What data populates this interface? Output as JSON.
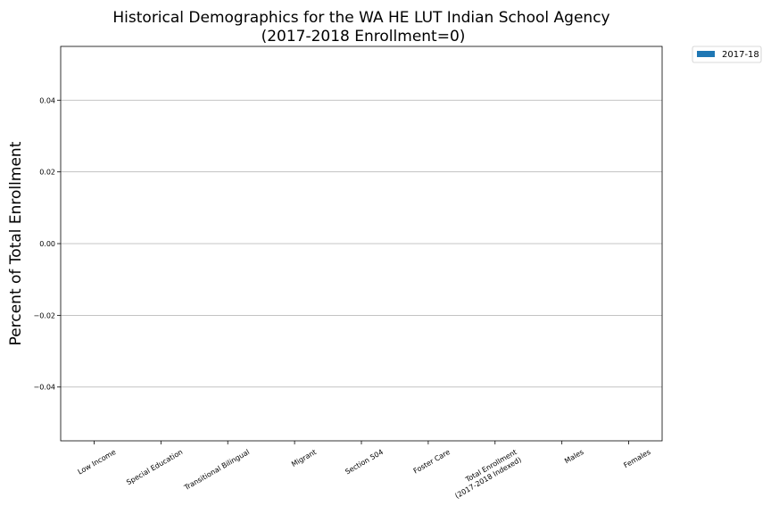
{
  "chart_data": {
    "type": "bar",
    "title": "Historical Demographics for the WA HE LUT Indian School Agency",
    "subtitle": "(2017-2018 Enrollment=0)",
    "xlabel": "",
    "ylabel": "Percent of Total Enrollment",
    "categories": [
      "Low Income",
      "Special Education",
      "Transitional Bilingual",
      "Migrant",
      "Section 504",
      "Foster Care",
      "Total Enrollment\n(2017-2018 Indexed)",
      "Males",
      "Females"
    ],
    "series": [
      {
        "name": "2017-18",
        "color": "#1f77b4",
        "values": [
          0,
          0,
          0,
          0,
          0,
          0,
          0,
          0,
          0
        ]
      }
    ],
    "ylim": [
      -0.055,
      0.055
    ],
    "yticks": [
      -0.04,
      -0.02,
      0.0,
      0.02,
      0.04
    ],
    "ytick_labels": [
      "−0.04",
      "−0.02",
      "0.00",
      "0.02",
      "0.04"
    ],
    "grid": "horizontal",
    "grid_color": "#b0b0b0",
    "legend_position": "outside-top-right"
  }
}
